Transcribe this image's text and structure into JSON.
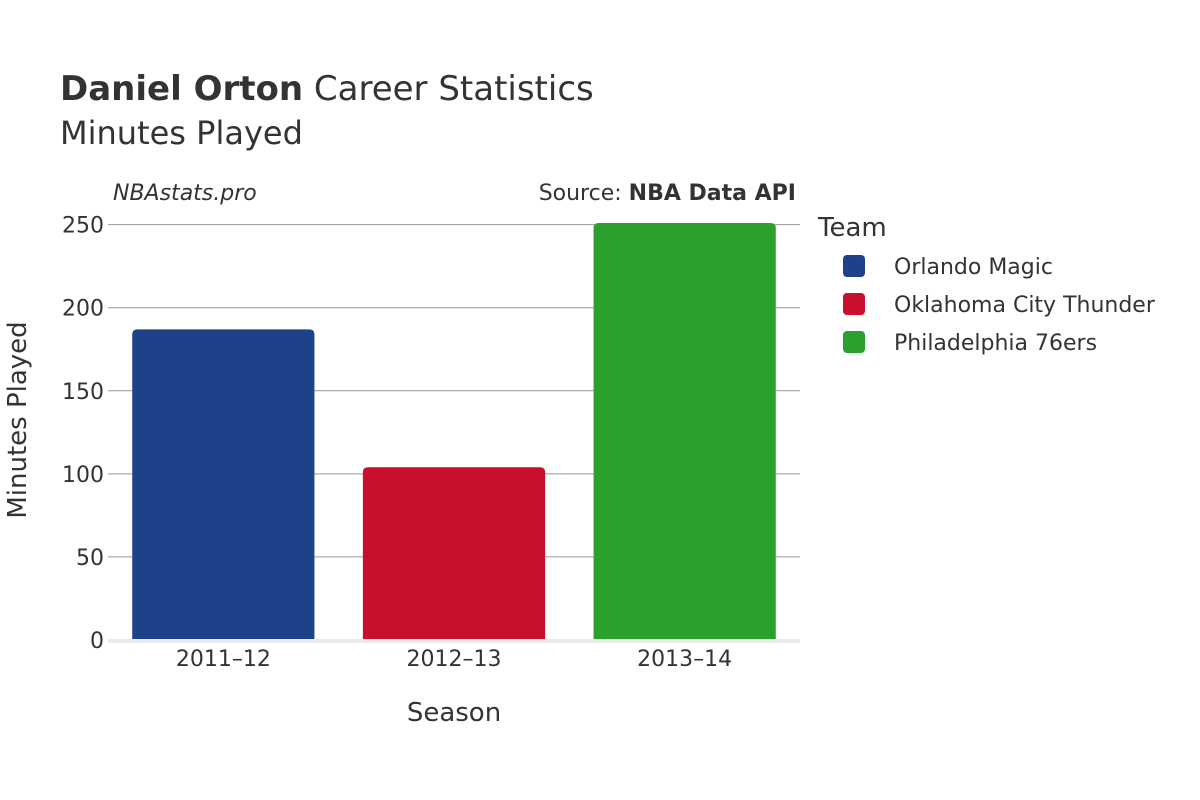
{
  "header": {
    "title_bold": "Daniel Orton",
    "title_rest": " Career Statistics",
    "subtitle": "Minutes Played"
  },
  "watermark": "NBAstats.pro",
  "source": {
    "prefix": "Source: ",
    "name": "NBA Data API"
  },
  "legend": {
    "title": "Team"
  },
  "chart_data": {
    "type": "bar",
    "title": "Daniel Orton Career Statistics",
    "subtitle": "Minutes Played",
    "xlabel": "Season",
    "ylabel": "Minutes Played",
    "categories": [
      "2011–12",
      "2012–13",
      "2013–14"
    ],
    "series": [
      {
        "name": "Orlando Magic",
        "color": "#1d4289",
        "values": [
          187,
          null,
          null
        ]
      },
      {
        "name": "Oklahoma City Thunder",
        "color": "#c8102e",
        "values": [
          null,
          104,
          null
        ]
      },
      {
        "name": "Philadelphia 76ers",
        "color": "#2ca02c",
        "values": [
          null,
          null,
          251
        ]
      }
    ],
    "ylim": [
      0,
      251
    ],
    "yticks": [
      0,
      50,
      100,
      150,
      200,
      250
    ],
    "grid": true,
    "legend_position": "right"
  }
}
